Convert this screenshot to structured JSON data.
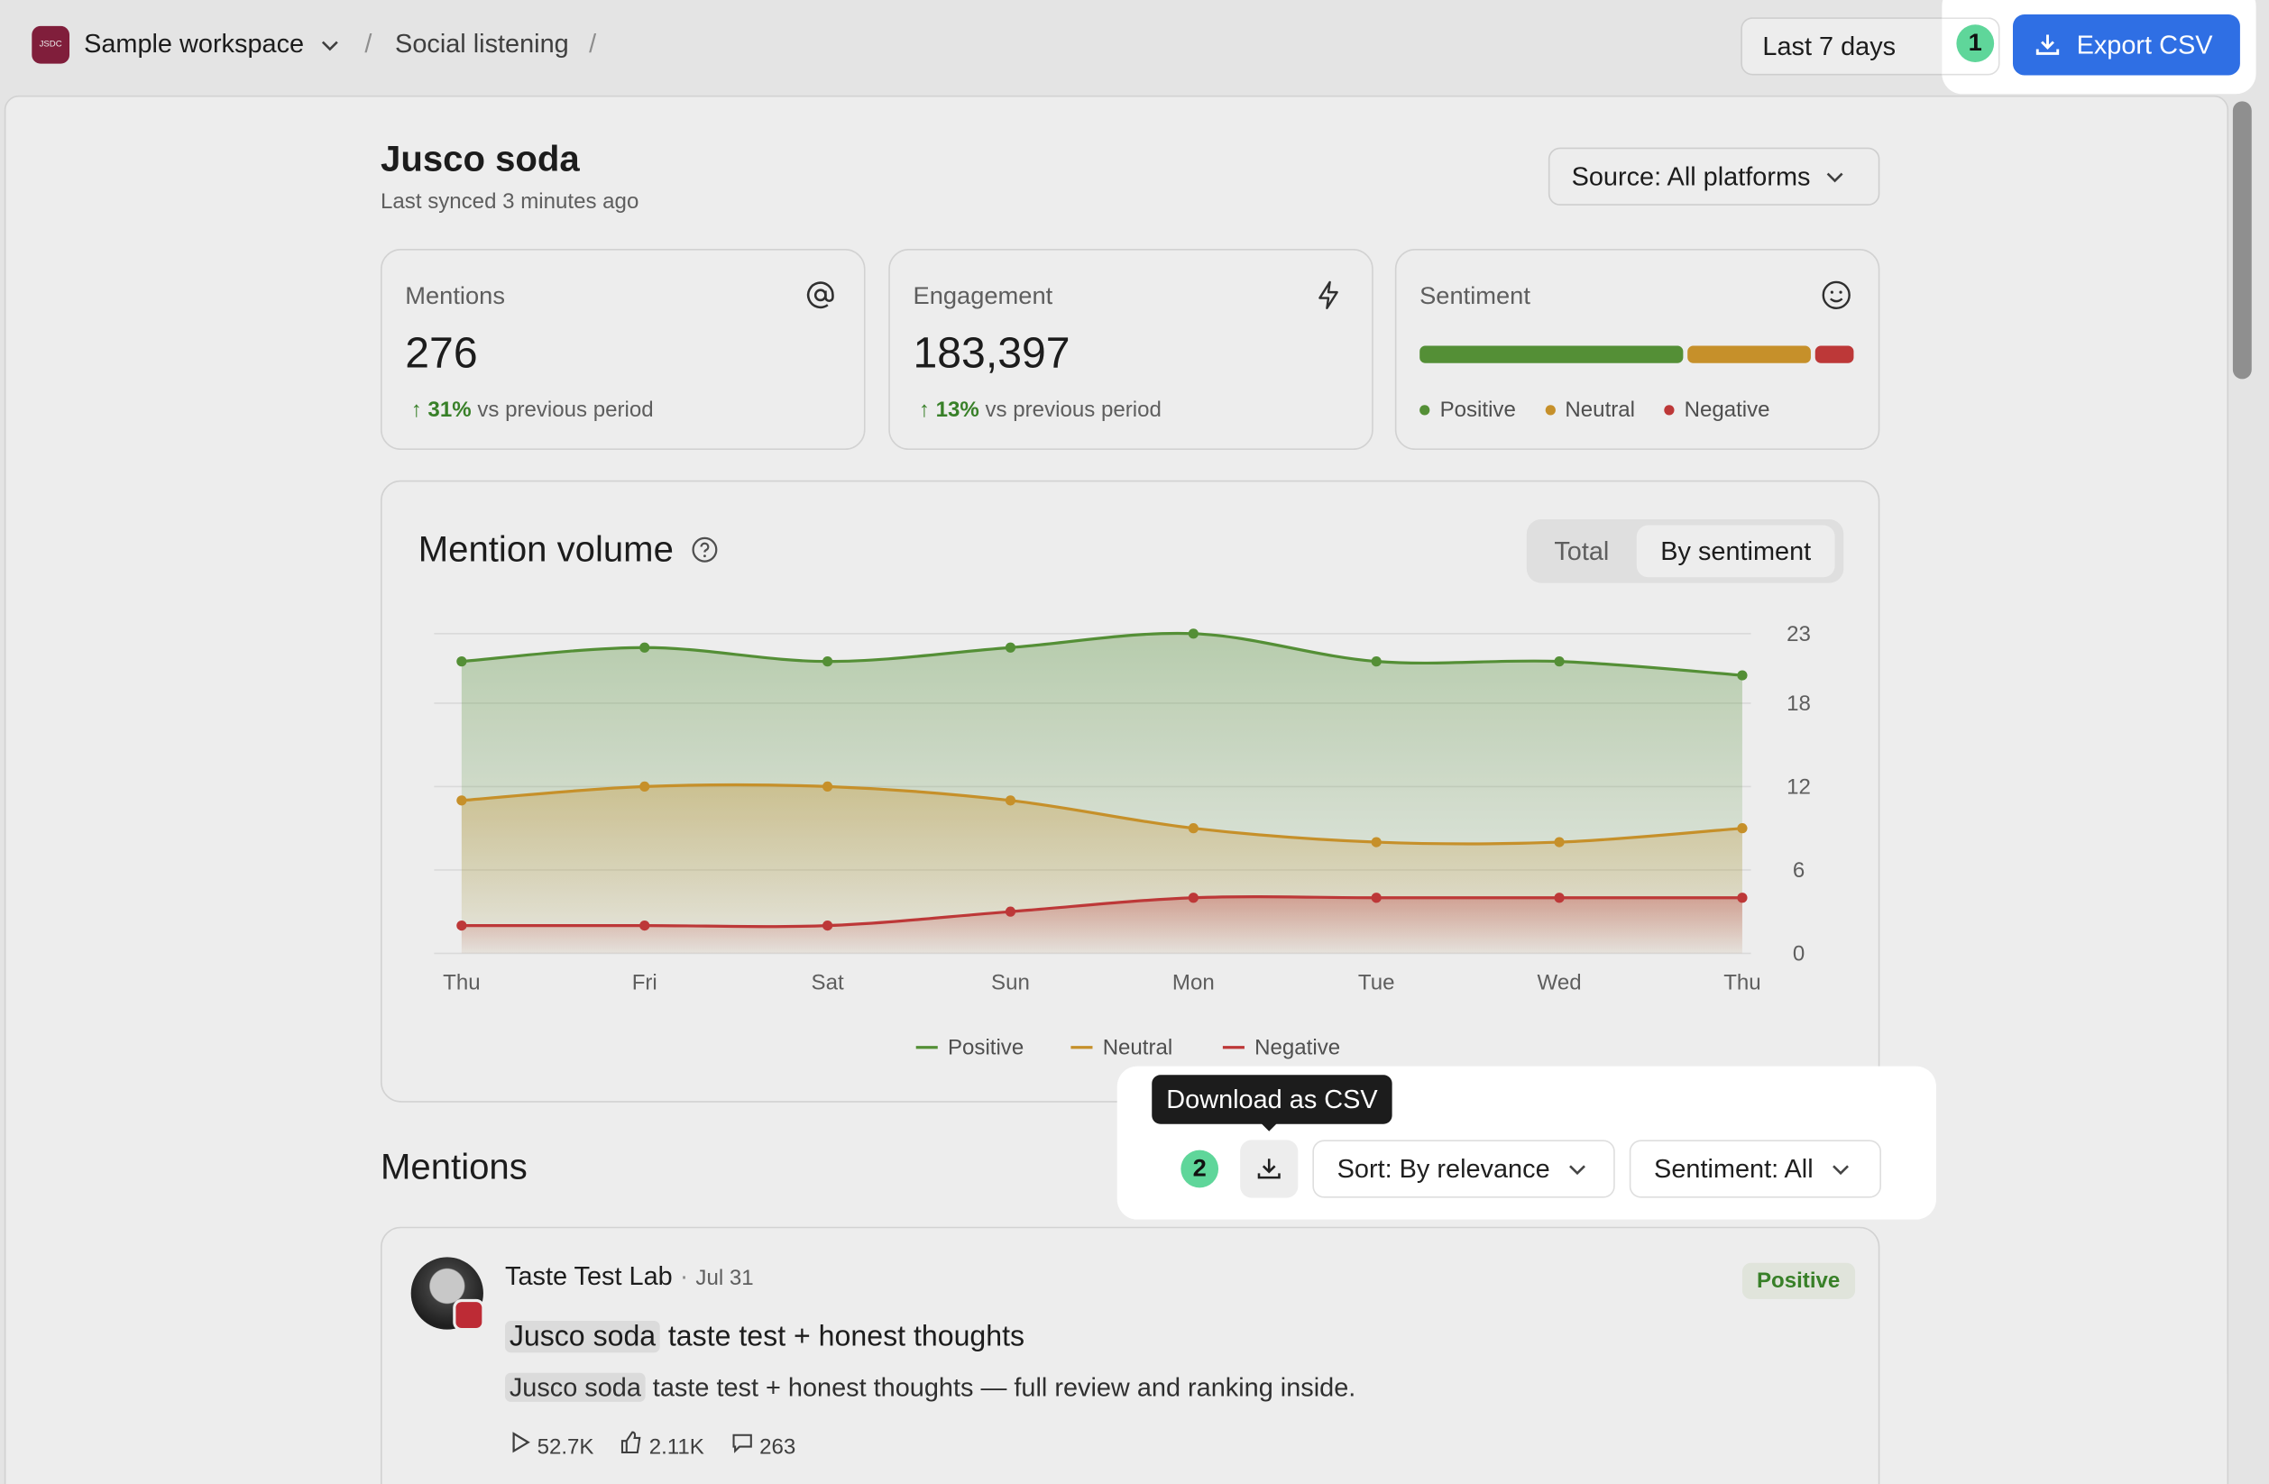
{
  "header": {
    "logo": "JSDC",
    "workspace": "Sample workspace",
    "breadcrumb": "Social listening",
    "range": "Last 7 days",
    "export": "Export CSV"
  },
  "steps": [
    "1",
    "2"
  ],
  "page": {
    "title": "Jusco soda",
    "synced": "Last synced 3 minutes ago",
    "source": "Source: All platforms"
  },
  "cards": [
    {
      "label": "Mentions",
      "value": "276",
      "change": "31%",
      "note": "vs previous period"
    },
    {
      "label": "Engagement",
      "value": "183,397",
      "change": "13%",
      "note": "vs previous period"
    },
    {
      "label": "Sentiment"
    }
  ],
  "chart_data": {
    "type": "area",
    "title": "Mention volume",
    "toggle": [
      "Total",
      "By sentiment"
    ],
    "categories": [
      "Thu",
      "Fri",
      "Sat",
      "Sun",
      "Mon",
      "Tue",
      "Wed",
      "Thu"
    ],
    "series": [
      {
        "name": "Positive",
        "color": "#5b9a3b",
        "values": [
          21,
          22,
          21,
          22,
          23,
          21,
          21,
          20
        ]
      },
      {
        "name": "Neutral",
        "color": "#d59b2e",
        "values": [
          11,
          12,
          12,
          11,
          9,
          8,
          8,
          9
        ]
      },
      {
        "name": "Negative",
        "color": "#cc3d3d",
        "values": [
          2,
          2,
          2,
          3,
          4,
          4,
          4,
          4
        ]
      }
    ],
    "ylim": [
      0,
      23
    ],
    "yticks": [
      0,
      6,
      12,
      18,
      23
    ],
    "grid": true,
    "legend": "bottom"
  },
  "mentions": {
    "title": "Mentions",
    "tooltip": "Download as CSV",
    "sort": "Sort: By relevance",
    "filter": "Sentiment: All",
    "items": [
      {
        "author": "Taste Test Lab",
        "date": "Jul 31",
        "sentiment": "Positive",
        "highlight": "Jusco soda",
        "title": "taste test + honest thoughts",
        "body": "taste test + honest thoughts — full review and ranking inside.",
        "views": "52.7K",
        "likes": "2.11K",
        "comments": "263"
      }
    ]
  }
}
